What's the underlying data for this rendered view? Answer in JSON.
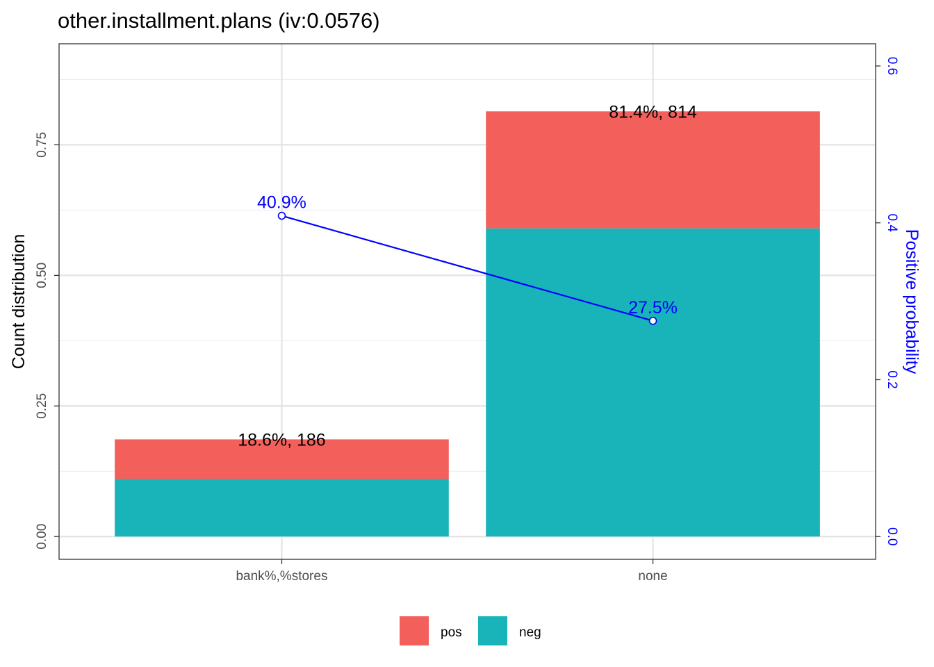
{
  "chart_data": {
    "type": "bar",
    "title": "other.installment.plans  (iv:0.0576)",
    "categories": [
      "bank%,%stores",
      "none"
    ],
    "series": [
      {
        "name": "pos",
        "values": [
          0.076,
          0.224
        ],
        "color": "#F3605C"
      },
      {
        "name": "neg",
        "values": [
          0.11,
          0.59
        ],
        "color": "#19B4B9"
      }
    ],
    "bar_labels": [
      "18.6%, 186",
      "81.4%, 814"
    ],
    "line": {
      "values": [
        0.409,
        0.275
      ],
      "labels": [
        "40.9%",
        "27.5%"
      ],
      "color": "#0000FF"
    },
    "ylabel": "Count distribution",
    "ylabel_right": "Positive probability",
    "ylim": [
      -0.0436,
      0.9434
    ],
    "yticks": [
      "0.00",
      "0.25",
      "0.50",
      "0.75"
    ],
    "yticks_right": [
      "0.0",
      "0.2",
      "0.4",
      "0.6"
    ],
    "y2_scale": 0.666,
    "legend_position": "bottom",
    "grid": true
  }
}
